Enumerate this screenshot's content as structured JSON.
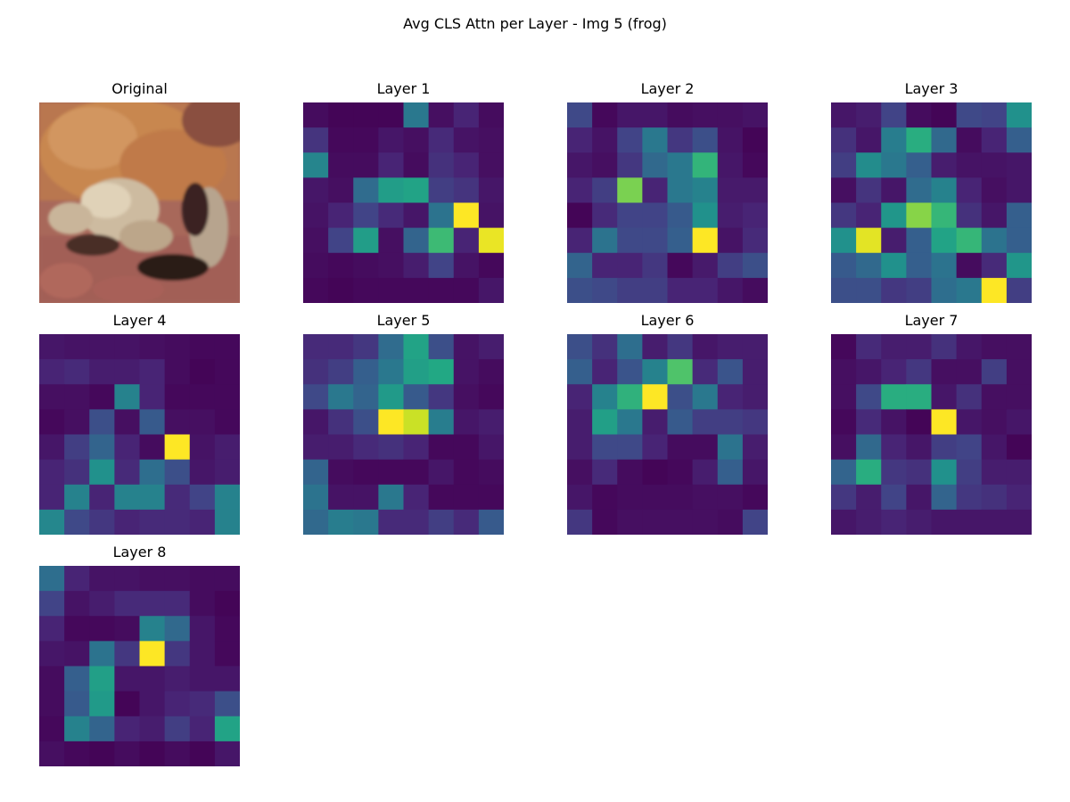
{
  "chart_data": {
    "type": "heatmap",
    "title": "Avg CLS Attn per Layer - Img 5 (frog)",
    "colormap": "viridis",
    "grid": false,
    "axes_visible": false,
    "original_panel": {
      "title": "Original",
      "content": "downsampled 32x32 photo of a frog, orange-brown body on reddish ground"
    },
    "layers": [
      {
        "title": "Layer 1",
        "values": [
          [
            0.03,
            0.01,
            0.01,
            0.01,
            0.4,
            0.04,
            0.1,
            0.03
          ],
          [
            0.15,
            0.02,
            0.02,
            0.06,
            0.04,
            0.12,
            0.05,
            0.04
          ],
          [
            0.45,
            0.03,
            0.03,
            0.1,
            0.03,
            0.14,
            0.1,
            0.04
          ],
          [
            0.06,
            0.04,
            0.35,
            0.55,
            0.58,
            0.18,
            0.15,
            0.06
          ],
          [
            0.05,
            0.1,
            0.2,
            0.12,
            0.06,
            0.38,
            1.0,
            0.05
          ],
          [
            0.04,
            0.2,
            0.55,
            0.04,
            0.32,
            0.68,
            0.1,
            0.97
          ],
          [
            0.03,
            0.02,
            0.03,
            0.04,
            0.08,
            0.2,
            0.05,
            0.02
          ],
          [
            0.02,
            0.01,
            0.02,
            0.02,
            0.02,
            0.02,
            0.02,
            0.06
          ]
        ]
      },
      {
        "title": "Layer 2",
        "values": [
          [
            0.22,
            0.02,
            0.06,
            0.06,
            0.03,
            0.04,
            0.04,
            0.05
          ],
          [
            0.1,
            0.05,
            0.2,
            0.4,
            0.16,
            0.24,
            0.05,
            0.01
          ],
          [
            0.06,
            0.04,
            0.16,
            0.34,
            0.4,
            0.65,
            0.06,
            0.02
          ],
          [
            0.1,
            0.18,
            0.8,
            0.1,
            0.4,
            0.44,
            0.07,
            0.07
          ],
          [
            0.01,
            0.12,
            0.2,
            0.2,
            0.28,
            0.5,
            0.08,
            0.1
          ],
          [
            0.1,
            0.38,
            0.22,
            0.22,
            0.3,
            1.0,
            0.05,
            0.12
          ],
          [
            0.32,
            0.1,
            0.1,
            0.16,
            0.02,
            0.07,
            0.18,
            0.24
          ],
          [
            0.24,
            0.22,
            0.18,
            0.18,
            0.1,
            0.1,
            0.06,
            0.03
          ]
        ]
      },
      {
        "title": "Layer 3",
        "values": [
          [
            0.06,
            0.08,
            0.2,
            0.03,
            0.01,
            0.22,
            0.2,
            0.5
          ],
          [
            0.14,
            0.06,
            0.42,
            0.62,
            0.34,
            0.03,
            0.1,
            0.3
          ],
          [
            0.18,
            0.48,
            0.4,
            0.3,
            0.08,
            0.05,
            0.05,
            0.06
          ],
          [
            0.04,
            0.15,
            0.06,
            0.35,
            0.44,
            0.1,
            0.04,
            0.06
          ],
          [
            0.16,
            0.1,
            0.52,
            0.82,
            0.66,
            0.14,
            0.06,
            0.3
          ],
          [
            0.5,
            0.96,
            0.08,
            0.3,
            0.58,
            0.66,
            0.38,
            0.3
          ],
          [
            0.28,
            0.34,
            0.5,
            0.3,
            0.38,
            0.03,
            0.12,
            0.52
          ],
          [
            0.24,
            0.24,
            0.16,
            0.18,
            0.36,
            0.4,
            1.0,
            0.18
          ]
        ]
      },
      {
        "title": "Layer 4",
        "values": [
          [
            0.06,
            0.05,
            0.05,
            0.05,
            0.04,
            0.03,
            0.02,
            0.02
          ],
          [
            0.1,
            0.12,
            0.08,
            0.08,
            0.1,
            0.03,
            0.01,
            0.02
          ],
          [
            0.04,
            0.04,
            0.02,
            0.44,
            0.1,
            0.02,
            0.02,
            0.02
          ],
          [
            0.02,
            0.04,
            0.24,
            0.04,
            0.28,
            0.04,
            0.04,
            0.02
          ],
          [
            0.06,
            0.18,
            0.32,
            0.1,
            0.03,
            1.0,
            0.05,
            0.08
          ],
          [
            0.1,
            0.14,
            0.5,
            0.12,
            0.36,
            0.24,
            0.06,
            0.08
          ],
          [
            0.1,
            0.44,
            0.1,
            0.44,
            0.44,
            0.12,
            0.2,
            0.44
          ],
          [
            0.46,
            0.22,
            0.16,
            0.1,
            0.12,
            0.12,
            0.1,
            0.44
          ]
        ]
      },
      {
        "title": "Layer 5",
        "values": [
          [
            0.12,
            0.12,
            0.16,
            0.35,
            0.58,
            0.24,
            0.05,
            0.08
          ],
          [
            0.14,
            0.18,
            0.3,
            0.4,
            0.56,
            0.6,
            0.05,
            0.03
          ],
          [
            0.22,
            0.4,
            0.32,
            0.54,
            0.28,
            0.16,
            0.04,
            0.02
          ],
          [
            0.06,
            0.14,
            0.24,
            1.0,
            0.92,
            0.42,
            0.06,
            0.08
          ],
          [
            0.08,
            0.08,
            0.12,
            0.14,
            0.1,
            0.02,
            0.02,
            0.06
          ],
          [
            0.32,
            0.03,
            0.02,
            0.02,
            0.02,
            0.06,
            0.02,
            0.03
          ],
          [
            0.38,
            0.05,
            0.05,
            0.4,
            0.1,
            0.02,
            0.02,
            0.02
          ],
          [
            0.34,
            0.42,
            0.4,
            0.12,
            0.12,
            0.18,
            0.12,
            0.28
          ]
        ]
      },
      {
        "title": "Layer 6",
        "values": [
          [
            0.24,
            0.14,
            0.36,
            0.08,
            0.16,
            0.06,
            0.08,
            0.08
          ],
          [
            0.3,
            0.1,
            0.26,
            0.44,
            0.72,
            0.12,
            0.26,
            0.08
          ],
          [
            0.1,
            0.44,
            0.64,
            1.0,
            0.24,
            0.4,
            0.1,
            0.08
          ],
          [
            0.08,
            0.56,
            0.4,
            0.08,
            0.28,
            0.18,
            0.18,
            0.16
          ],
          [
            0.08,
            0.22,
            0.22,
            0.1,
            0.03,
            0.03,
            0.38,
            0.08
          ],
          [
            0.04,
            0.12,
            0.03,
            0.01,
            0.02,
            0.08,
            0.3,
            0.06
          ],
          [
            0.06,
            0.02,
            0.03,
            0.03,
            0.03,
            0.04,
            0.04,
            0.02
          ],
          [
            0.16,
            0.02,
            0.04,
            0.04,
            0.04,
            0.04,
            0.03,
            0.2
          ]
        ]
      },
      {
        "title": "Layer 7",
        "values": [
          [
            0.02,
            0.12,
            0.08,
            0.08,
            0.14,
            0.06,
            0.04,
            0.04
          ],
          [
            0.04,
            0.06,
            0.1,
            0.16,
            0.04,
            0.04,
            0.18,
            0.04
          ],
          [
            0.04,
            0.22,
            0.62,
            0.62,
            0.06,
            0.14,
            0.04,
            0.04
          ],
          [
            0.02,
            0.12,
            0.05,
            0.01,
            1.0,
            0.06,
            0.04,
            0.06
          ],
          [
            0.04,
            0.34,
            0.1,
            0.06,
            0.18,
            0.2,
            0.06,
            0.01
          ],
          [
            0.32,
            0.62,
            0.16,
            0.14,
            0.5,
            0.18,
            0.08,
            0.08
          ],
          [
            0.16,
            0.08,
            0.2,
            0.06,
            0.32,
            0.16,
            0.14,
            0.1
          ],
          [
            0.06,
            0.08,
            0.1,
            0.08,
            0.06,
            0.06,
            0.06,
            0.06
          ]
        ]
      },
      {
        "title": "Layer 8",
        "values": [
          [
            0.36,
            0.1,
            0.05,
            0.05,
            0.04,
            0.04,
            0.03,
            0.03
          ],
          [
            0.2,
            0.05,
            0.08,
            0.12,
            0.12,
            0.12,
            0.03,
            0.01
          ],
          [
            0.1,
            0.02,
            0.02,
            0.03,
            0.44,
            0.34,
            0.06,
            0.02
          ],
          [
            0.06,
            0.05,
            0.38,
            0.16,
            1.0,
            0.16,
            0.06,
            0.02
          ],
          [
            0.03,
            0.3,
            0.56,
            0.06,
            0.06,
            0.08,
            0.06,
            0.06
          ],
          [
            0.03,
            0.28,
            0.54,
            0.01,
            0.06,
            0.1,
            0.12,
            0.24
          ],
          [
            0.02,
            0.44,
            0.32,
            0.1,
            0.08,
            0.18,
            0.1,
            0.58
          ],
          [
            0.04,
            0.02,
            0.01,
            0.03,
            0.01,
            0.03,
            0.01,
            0.06
          ]
        ]
      }
    ]
  }
}
